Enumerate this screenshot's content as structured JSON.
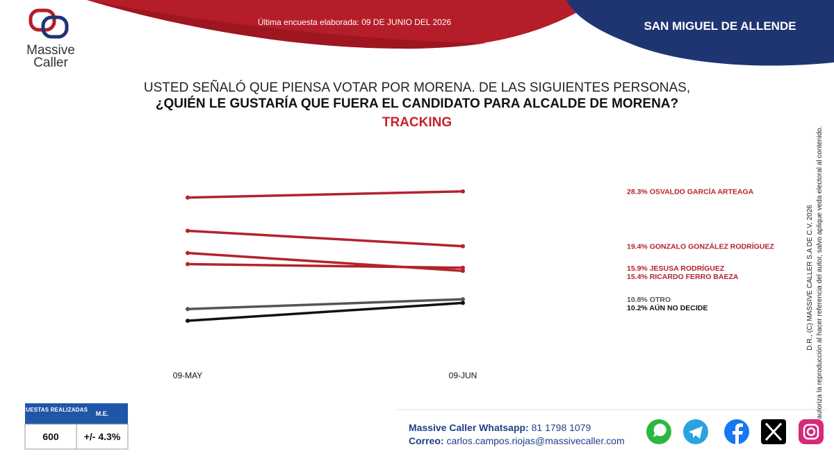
{
  "header": {
    "survey_date": "Última encuesta elaborada: 09 DE JUNIO DEL 2026",
    "location": "SAN MIGUEL DE ALLENDE",
    "logo_line1": "Massive",
    "logo_line2": "Caller"
  },
  "chart_data": {
    "type": "line",
    "title": [
      "USTED SEÑALÓ QUE PIENSA VOTAR POR MORENA. DE LAS SIGUIENTES PERSONAS,",
      "¿QUIÉN LE GUSTARÍA QUE FUERA EL CANDIDATO PARA ALCALDE DE MORENA?"
    ],
    "subtitle": "TRACKING",
    "categories": [
      "09-MAY",
      "09-JUN"
    ],
    "ylim": [
      0,
      30
    ],
    "series": [
      {
        "name": "OSVALDO GARCÍA ARTEAGA",
        "color": "#b3232b",
        "values": [
          27.3,
          28.3
        ],
        "value_labels": [
          null,
          "28.3%"
        ]
      },
      {
        "name": "GONZALO GONZÁLEZ RODRÍGUEZ",
        "color": "#b3232b",
        "values": [
          21.9,
          19.4
        ],
        "value_labels": [
          null,
          "19.4%"
        ]
      },
      {
        "name": "JESUSA RODRÍGUEZ",
        "color": "#b3232b",
        "values": [
          16.5,
          15.9
        ],
        "value_labels": [
          null,
          "15.9%"
        ]
      },
      {
        "name": "RICARDO FERRO BAEZA",
        "color": "#b3232b",
        "values": [
          18.3,
          15.4
        ],
        "value_labels": [
          null,
          "15.4%"
        ]
      },
      {
        "name": "OTRO",
        "color": "#555555",
        "values": [
          9.2,
          10.8
        ],
        "value_labels": [
          null,
          "10.8%"
        ]
      },
      {
        "name": "AÚN NO DECIDE",
        "color": "#111111",
        "values": [
          7.3,
          10.2
        ],
        "value_labels": [
          null,
          "10.2%"
        ]
      }
    ]
  },
  "side_note": [
    "D.R., (C) MASSIVE CALLER S.A DE C.V, 2026",
    "Se autoriza la reproducción al hacer referencia del autor, salvo aplique veda electoral al contenido."
  ],
  "table": {
    "headers": [
      "ENCUESTAS REALIZADAS",
      "M.E."
    ],
    "rows": [
      [
        "600",
        "+/- 4.3%"
      ]
    ]
  },
  "footer": {
    "whatsapp_label": "Massive Caller Whatsapp:",
    "whatsapp": "81 1798 1079",
    "email_label": "Correo:",
    "email": "carlos.campos.riojas@massivecaller.com"
  }
}
